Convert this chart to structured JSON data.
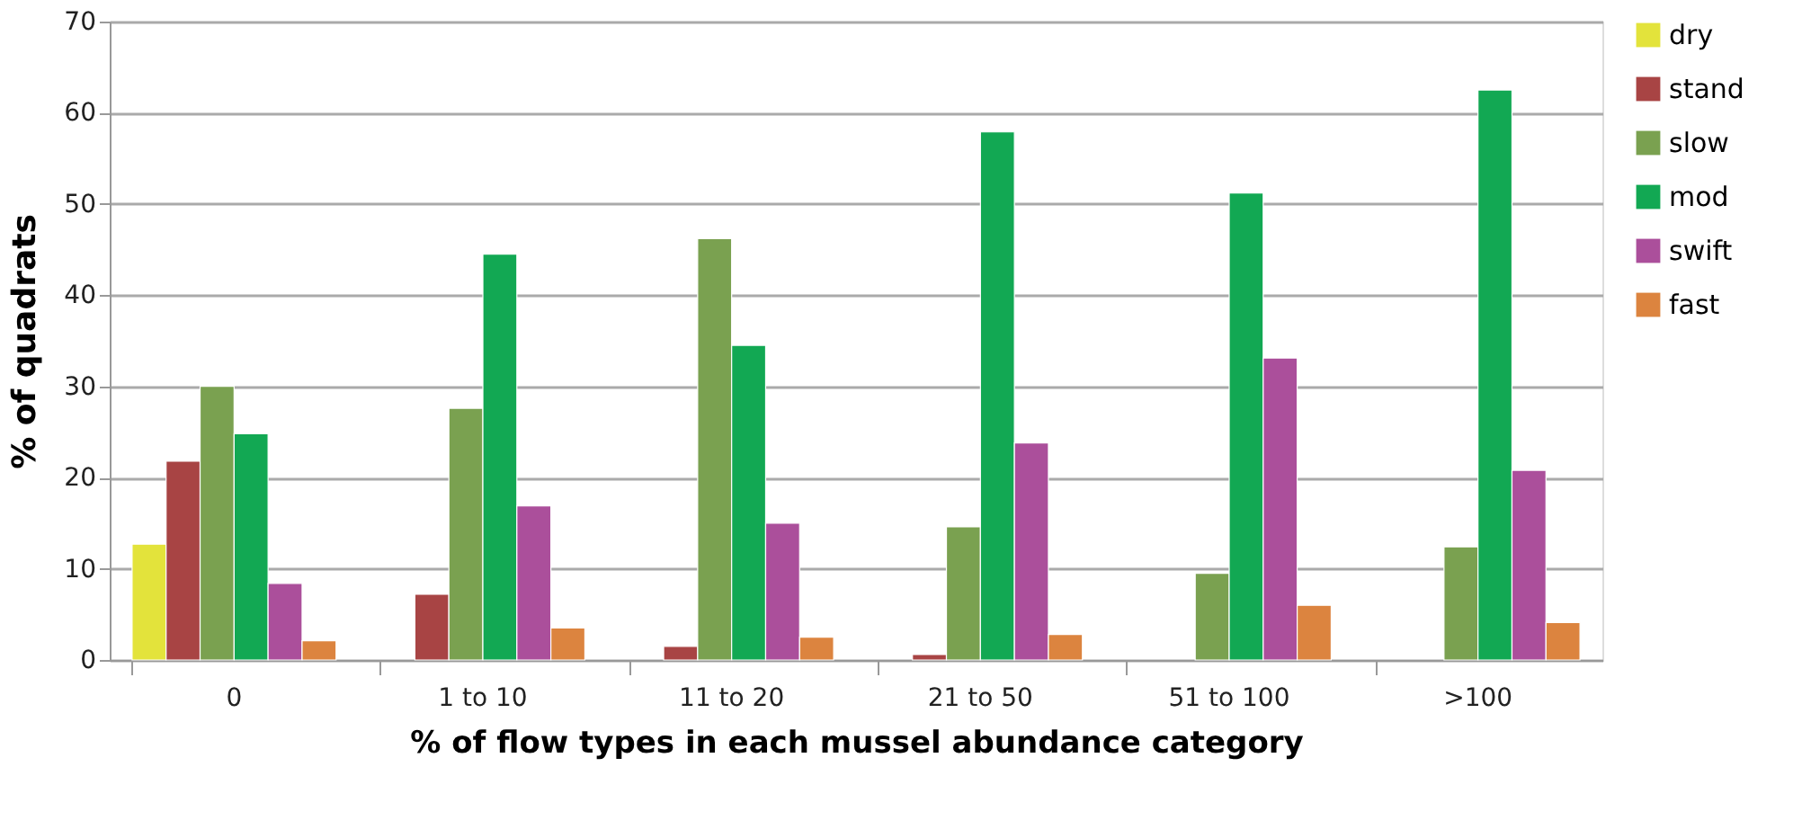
{
  "chart_data": {
    "type": "bar",
    "xlabel": "% of flow types in each mussel abundance category",
    "ylabel": "% of quadrats",
    "categories": [
      "0",
      "1 to 10",
      "11 to 20",
      "21 to 50",
      "51 to 100",
      ">100"
    ],
    "series": [
      {
        "name": "dry",
        "color": "#e3e33b",
        "values": [
          12.7,
          null,
          null,
          null,
          null,
          null
        ]
      },
      {
        "name": "stand",
        "color": "#a84444",
        "values": [
          21.8,
          7.2,
          1.5,
          0.6,
          null,
          null
        ]
      },
      {
        "name": "slow",
        "color": "#7aa150",
        "values": [
          30,
          27.6,
          46.2,
          14.6,
          9.5,
          12.4
        ]
      },
      {
        "name": "mod",
        "color": "#12a853",
        "values": [
          24.8,
          44.5,
          34.5,
          57.9,
          51.2,
          62.5
        ]
      },
      {
        "name": "swift",
        "color": "#ab4f9b",
        "values": [
          8.4,
          16.9,
          15,
          23.8,
          33.1,
          20.8
        ]
      },
      {
        "name": "fast",
        "color": "#dc843f",
        "values": [
          2.1,
          3.5,
          2.5,
          2.8,
          6,
          4.1
        ]
      }
    ],
    "ylim": [
      0,
      70
    ],
    "yticks": [
      0,
      10,
      20,
      30,
      40,
      50,
      60,
      70
    ],
    "grid": "y",
    "legend": "right"
  }
}
